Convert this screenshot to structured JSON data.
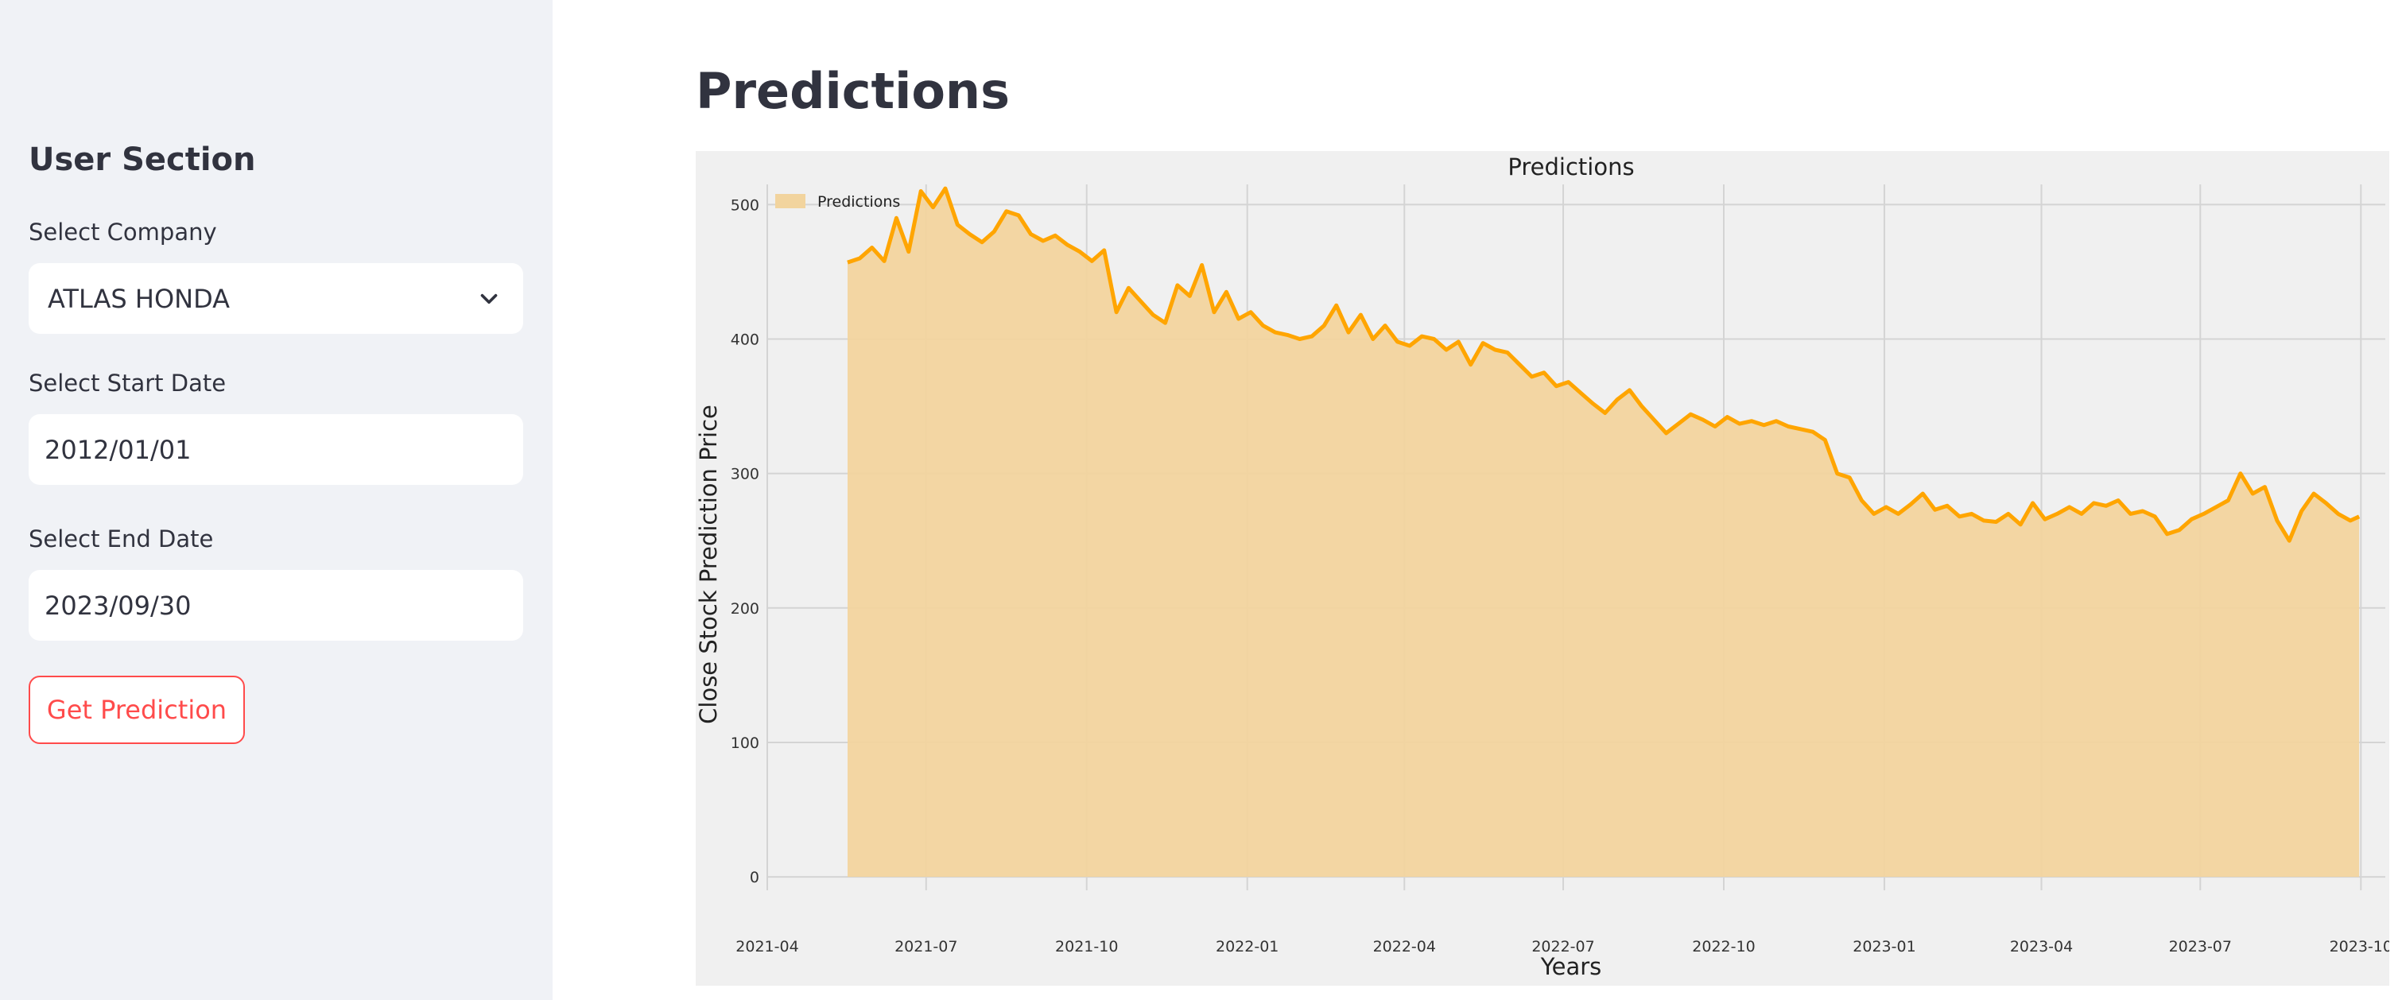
{
  "sidebar": {
    "title": "User Section",
    "company_label": "Select Company",
    "company_value": "ATLAS HONDA",
    "start_label": "Select Start Date",
    "start_value": "2012/01/01",
    "end_label": "Select End Date",
    "end_value": "2023/09/30",
    "button_label": "Get Prediction",
    "chevron_icon": "chevron-down-icon"
  },
  "main": {
    "title": "Predictions"
  },
  "colors": {
    "accent": "#ff4b4b",
    "line": "#ffa500",
    "fill": "#f2d49e",
    "plot_bg": "#f0f0f0",
    "sidebar_bg": "#f0f2f6"
  },
  "chart_data": {
    "type": "area",
    "title": "Predictions",
    "xlabel": "Years",
    "ylabel": "Close Stock Prediction Price",
    "legend": [
      "Predictions"
    ],
    "legend_position": "top-left",
    "grid": true,
    "xlim": [
      "2021-04-01",
      "2023-10-15"
    ],
    "ylim": [
      -10,
      515
    ],
    "x_ticks": [
      "2021-04",
      "2021-07",
      "2021-10",
      "2022-01",
      "2022-04",
      "2022-07",
      "2022-10",
      "2023-01",
      "2023-04",
      "2023-07",
      "2023-10"
    ],
    "y_ticks": [
      0,
      100,
      200,
      300,
      400,
      500
    ],
    "series": [
      {
        "name": "Predictions",
        "x": [
          "2021-05-17",
          "2021-05-24",
          "2021-05-31",
          "2021-06-07",
          "2021-06-14",
          "2021-06-21",
          "2021-06-28",
          "2021-07-05",
          "2021-07-12",
          "2021-07-19",
          "2021-07-26",
          "2021-08-02",
          "2021-08-09",
          "2021-08-16",
          "2021-08-23",
          "2021-08-30",
          "2021-09-06",
          "2021-09-13",
          "2021-09-20",
          "2021-09-27",
          "2021-10-04",
          "2021-10-11",
          "2021-10-18",
          "2021-10-25",
          "2021-11-01",
          "2021-11-08",
          "2021-11-15",
          "2021-11-22",
          "2021-11-29",
          "2021-12-06",
          "2021-12-13",
          "2021-12-20",
          "2021-12-27",
          "2022-01-03",
          "2022-01-10",
          "2022-01-17",
          "2022-01-24",
          "2022-01-31",
          "2022-02-07",
          "2022-02-14",
          "2022-02-21",
          "2022-02-28",
          "2022-03-07",
          "2022-03-14",
          "2022-03-21",
          "2022-03-28",
          "2022-04-04",
          "2022-04-11",
          "2022-04-18",
          "2022-04-25",
          "2022-05-02",
          "2022-05-09",
          "2022-05-16",
          "2022-05-23",
          "2022-05-30",
          "2022-06-06",
          "2022-06-13",
          "2022-06-20",
          "2022-06-27",
          "2022-07-04",
          "2022-07-11",
          "2022-07-18",
          "2022-07-25",
          "2022-08-01",
          "2022-08-08",
          "2022-08-15",
          "2022-08-22",
          "2022-08-29",
          "2022-09-05",
          "2022-09-12",
          "2022-09-19",
          "2022-09-26",
          "2022-10-03",
          "2022-10-10",
          "2022-10-17",
          "2022-10-24",
          "2022-10-31",
          "2022-11-07",
          "2022-11-14",
          "2022-11-21",
          "2022-11-28",
          "2022-12-05",
          "2022-12-12",
          "2022-12-19",
          "2022-12-26",
          "2023-01-02",
          "2023-01-09",
          "2023-01-16",
          "2023-01-23",
          "2023-01-30",
          "2023-02-06",
          "2023-02-13",
          "2023-02-20",
          "2023-02-27",
          "2023-03-06",
          "2023-03-13",
          "2023-03-20",
          "2023-03-27",
          "2023-04-03",
          "2023-04-10",
          "2023-04-17",
          "2023-04-24",
          "2023-05-01",
          "2023-05-08",
          "2023-05-15",
          "2023-05-22",
          "2023-05-29",
          "2023-06-05",
          "2023-06-12",
          "2023-06-19",
          "2023-06-26",
          "2023-07-03",
          "2023-07-10",
          "2023-07-17",
          "2023-07-24",
          "2023-07-31",
          "2023-08-07",
          "2023-08-14",
          "2023-08-21",
          "2023-08-28",
          "2023-09-04",
          "2023-09-11",
          "2023-09-18",
          "2023-09-25",
          "2023-09-30"
        ],
        "y": [
          457,
          460,
          468,
          458,
          490,
          465,
          510,
          498,
          512,
          485,
          478,
          472,
          480,
          495,
          492,
          478,
          473,
          477,
          470,
          465,
          458,
          466,
          420,
          438,
          428,
          418,
          412,
          440,
          432,
          455,
          420,
          435,
          415,
          420,
          410,
          405,
          403,
          400,
          402,
          410,
          425,
          405,
          418,
          400,
          410,
          398,
          395,
          402,
          400,
          392,
          398,
          381,
          397,
          392,
          390,
          381,
          372,
          375,
          365,
          368,
          360,
          352,
          345,
          355,
          362,
          350,
          340,
          330,
          337,
          344,
          340,
          335,
          342,
          337,
          339,
          336,
          339,
          335,
          333,
          331,
          325,
          300,
          297,
          280,
          270,
          275,
          270,
          277,
          285,
          273,
          276,
          268,
          270,
          265,
          264,
          270,
          262,
          278,
          266,
          270,
          275,
          270,
          278,
          276,
          280,
          270,
          272,
          268,
          255,
          258,
          266,
          270,
          275,
          280,
          300,
          285,
          290,
          265,
          250,
          272,
          285,
          278,
          270,
          265,
          268
        ]
      }
    ]
  }
}
